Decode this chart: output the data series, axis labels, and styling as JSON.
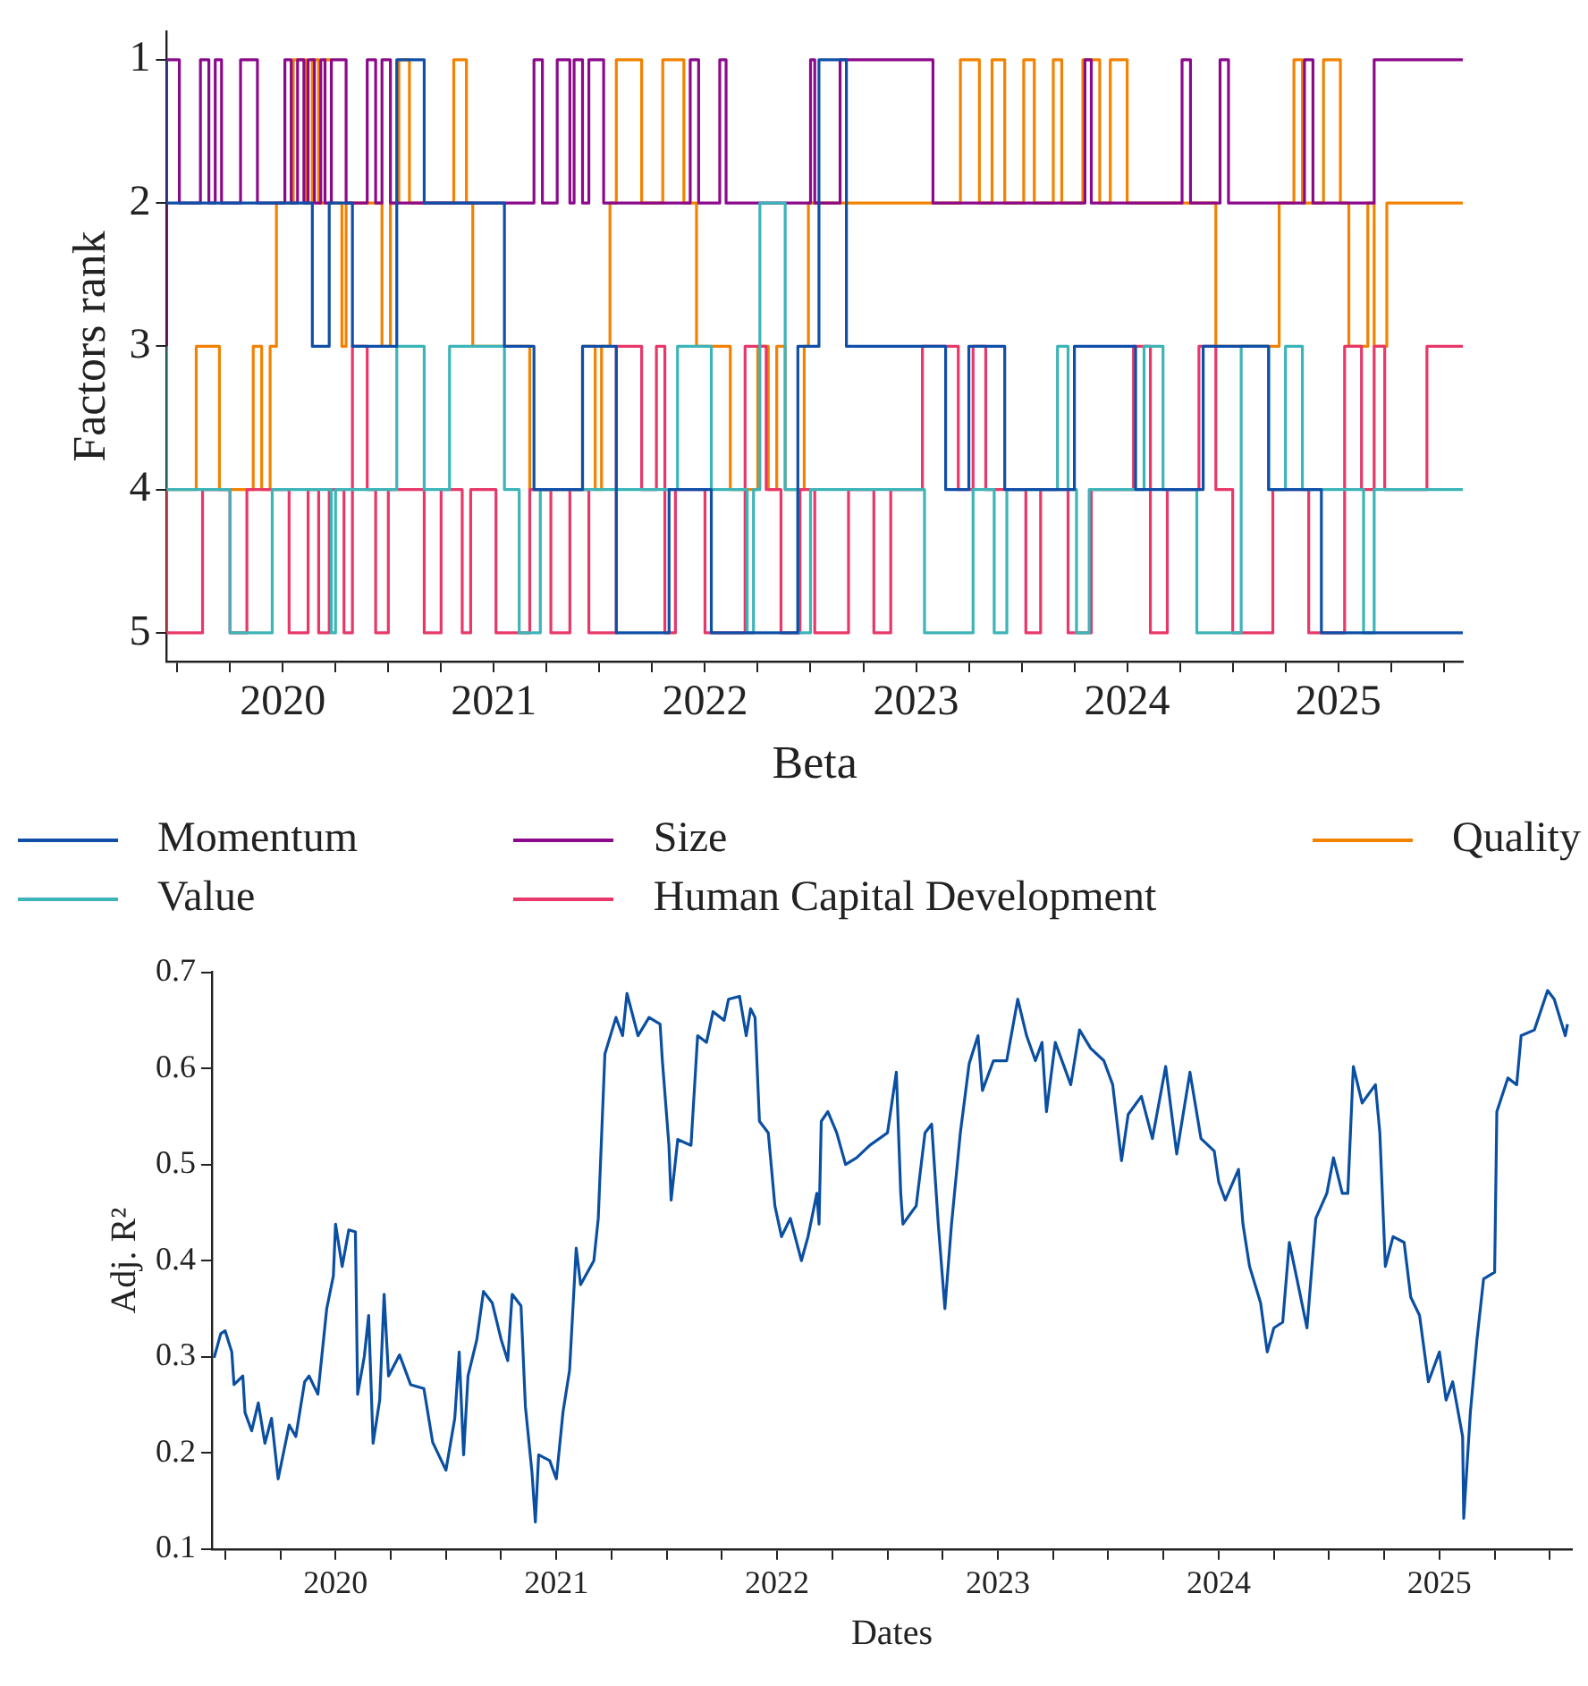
{
  "chart_data": [
    {
      "type": "step",
      "ylabel": "Factors rank",
      "xlabel": "Beta",
      "legend": "bottom",
      "xlim": [
        2019.45,
        2025.59
      ],
      "ylim": [
        5.2,
        0.8
      ],
      "yticks": [
        1,
        2,
        3,
        4,
        5
      ],
      "xticks": [
        {
          "value": 2019.5,
          "label": null
        },
        {
          "value": 2019.75,
          "label": null
        },
        2020,
        {
          "value": 2020.25,
          "label": null
        },
        {
          "value": 2020.5,
          "label": null
        },
        {
          "value": 2020.75,
          "label": null
        },
        2021,
        {
          "value": 2021.25,
          "label": null
        },
        {
          "value": 2021.5,
          "label": null
        },
        {
          "value": 2021.75,
          "label": null
        },
        2022,
        {
          "value": 2022.25,
          "label": null
        },
        {
          "value": 2022.5,
          "label": null
        },
        {
          "value": 2022.75,
          "label": null
        },
        2023,
        {
          "value": 2023.25,
          "label": null
        },
        {
          "value": 2023.5,
          "label": null
        },
        {
          "value": 2023.75,
          "label": null
        },
        2024,
        {
          "value": 2024.25,
          "label": null
        },
        {
          "value": 2024.5,
          "label": null
        },
        {
          "value": 2024.75,
          "label": null
        },
        2025,
        {
          "value": 2025.25,
          "label": null
        },
        {
          "value": 2025.5,
          "label": null
        }
      ],
      "series": [
        {
          "name": "Momentum",
          "color": "#0f4fa8",
          "x": [
            2019.45,
            2020.14,
            2020.22,
            2020.33,
            2020.54,
            2020.67,
            2021.05,
            2021.19,
            2021.42,
            2021.58,
            2021.83,
            2022.03,
            2022.44,
            2022.54,
            2022.67,
            2023.14,
            2023.25,
            2023.42,
            2023.75,
            2024.04,
            2024.36,
            2024.67,
            2024.92,
            2025.2,
            2025.59
          ],
          "values": [
            1,
            2,
            3,
            2,
            3,
            1,
            2,
            3,
            4,
            3,
            5,
            4,
            5,
            3,
            1,
            3,
            4,
            3,
            4,
            3,
            4,
            3,
            4,
            5,
            5
          ]
        },
        {
          "name": "Value",
          "color": "#3cb4b8",
          "x": [
            2019.45,
            2019.75,
            2019.95,
            2020.23,
            2020.25,
            2020.54,
            2020.67,
            2020.79,
            2021.05,
            2021.12,
            2021.22,
            2021.87,
            2022.03,
            2022.2,
            2022.23,
            2022.26,
            2022.38,
            2022.44,
            2022.5,
            2023.04,
            2023.27,
            2023.37,
            2023.43,
            2023.67,
            2023.72,
            2023.76,
            2023.82,
            2024.08,
            2024.17,
            2024.33,
            2024.54,
            2024.67,
            2024.75,
            2024.83,
            2025.12,
            2025.17,
            2025.33,
            2025.59
          ],
          "values": [
            3,
            4,
            5,
            4,
            5,
            4,
            3,
            4,
            3,
            4,
            5,
            4,
            3,
            4,
            5,
            4,
            2,
            4,
            5,
            4,
            5,
            4,
            5,
            4,
            3,
            4,
            5,
            4,
            3,
            4,
            5,
            3,
            4,
            3,
            4,
            5,
            4,
            4
          ]
        },
        {
          "name": "Size",
          "color": "#8b0a8c",
          "x": [
            2019.45,
            2019.51,
            2019.61,
            2019.65,
            2019.68,
            2019.71,
            2019.8,
            2019.88,
            2020.01,
            2020.04,
            2020.07,
            2020.1,
            2020.12,
            2020.15,
            2020.18,
            2020.2,
            2020.23,
            2020.3,
            2020.4,
            2020.44,
            2020.47,
            2020.51,
            2021.19,
            2021.23,
            2021.3,
            2021.36,
            2021.38,
            2021.42,
            2021.45,
            2021.52,
            2021.93,
            2021.97,
            2022.07,
            2022.1,
            2022.5,
            2022.52,
            2022.64,
            2023.08,
            2023.8,
            2023.83,
            2024.26,
            2024.3,
            2024.44,
            2024.48,
            2024.84,
            2024.88,
            2025.17,
            2025.22,
            2025.59
          ],
          "values": [
            3,
            1,
            2,
            1,
            2,
            1,
            2,
            1,
            2,
            1,
            2,
            1,
            2,
            1,
            2,
            1,
            2,
            1,
            2,
            1,
            2,
            1,
            2,
            1,
            2,
            1,
            2,
            1,
            2,
            1,
            2,
            1,
            2,
            1,
            2,
            1,
            2,
            1,
            2,
            1,
            2,
            1,
            2,
            1,
            2,
            1,
            2,
            1,
            1
          ]
        },
        {
          "name": "Human Capital Development",
          "color": "#e8386a",
          "x": [
            2019.45,
            2019.62,
            2019.75,
            2019.83,
            2020.03,
            2020.12,
            2020.17,
            2020.22,
            2020.29,
            2020.33,
            2020.4,
            2020.44,
            2020.5,
            2020.67,
            2020.75,
            2020.85,
            2020.89,
            2021.01,
            2021.17,
            2021.27,
            2021.36,
            2021.45,
            2021.58,
            2021.7,
            2021.77,
            2021.81,
            2021.86,
            2022.0,
            2022.19,
            2022.29,
            2022.36,
            2022.45,
            2022.52,
            2022.68,
            2022.8,
            2022.88,
            2023.03,
            2023.2,
            2023.27,
            2023.33,
            2023.52,
            2023.59,
            2023.72,
            2023.83,
            2024.03,
            2024.11,
            2024.19,
            2024.34,
            2024.42,
            2024.5,
            2024.69,
            2024.86,
            2025.03,
            2025.11,
            2025.17,
            2025.22,
            2025.42,
            2025.47,
            2025.59
          ],
          "values": [
            4,
            5,
            4,
            5,
            4,
            5,
            4,
            5,
            4,
            5,
            3,
            4,
            5,
            4,
            5,
            4,
            5,
            4,
            5,
            4,
            5,
            4,
            5,
            3,
            4,
            3,
            5,
            4,
            5,
            3,
            4,
            5,
            4,
            5,
            4,
            5,
            4,
            3,
            4,
            3,
            4,
            5,
            4,
            5,
            4,
            3,
            5,
            4,
            3,
            4,
            5,
            4,
            5,
            3,
            4,
            3,
            4,
            3,
            3
          ]
        },
        {
          "name": "Quality",
          "color": "#f28200",
          "x": [
            2019.45,
            2019.59,
            2019.7,
            2019.86,
            2019.9,
            2019.94,
            2019.97,
            2020.05,
            2020.11,
            2020.14,
            2020.17,
            2020.2,
            2020.23,
            2020.28,
            2020.3,
            2020.47,
            2020.51,
            2020.55,
            2020.6,
            2020.81,
            2020.87,
            2020.9,
            2021.17,
            2021.42,
            2021.48,
            2021.51,
            2021.55,
            2021.58,
            2021.7,
            2021.8,
            2021.9,
            2021.96,
            2022.12,
            2022.25,
            2022.3,
            2022.34,
            2022.38,
            2022.47,
            2022.49,
            2023.21,
            2023.3,
            2023.36,
            2023.42,
            2023.51,
            2023.56,
            2023.65,
            2023.69,
            2023.79,
            2023.87,
            2023.92,
            2024.0,
            2024.42,
            2024.72,
            2024.79,
            2024.83,
            2024.93,
            2025.01,
            2025.05,
            2025.14,
            2025.17,
            2025.23,
            2025.26,
            2025.59
          ],
          "values": [
            5,
            4,
            3,
            4,
            3,
            4,
            3,
            2,
            1,
            2,
            1,
            2,
            1,
            2,
            3,
            2,
            3,
            2,
            1,
            2,
            1,
            2,
            3,
            4,
            3,
            4,
            3,
            2,
            1,
            2,
            1,
            2,
            3,
            4,
            3,
            4,
            3,
            4,
            3,
            2,
            1,
            2,
            1,
            2,
            1,
            2,
            1,
            2,
            1,
            2,
            1,
            2,
            3,
            2,
            1,
            2,
            1,
            2,
            3,
            2,
            3,
            2,
            2
          ]
        }
      ]
    },
    {
      "type": "line",
      "ylabel": "Adj. R²",
      "xlabel": "Dates",
      "xlim": [
        2019.44,
        2025.6
      ],
      "ylim": [
        0.1,
        0.7
      ],
      "yticks": [
        0.1,
        0.2,
        0.3,
        0.4,
        0.5,
        0.6,
        0.7
      ],
      "xticks": [
        {
          "value": 2019.5,
          "label": null
        },
        {
          "value": 2019.75,
          "label": null
        },
        2020,
        {
          "value": 2020.25,
          "label": null
        },
        {
          "value": 2020.5,
          "label": null
        },
        {
          "value": 2020.75,
          "label": null
        },
        2021,
        {
          "value": 2021.25,
          "label": null
        },
        {
          "value": 2021.5,
          "label": null
        },
        {
          "value": 2021.75,
          "label": null
        },
        2022,
        {
          "value": 2022.25,
          "label": null
        },
        {
          "value": 2022.5,
          "label": null
        },
        {
          "value": 2022.75,
          "label": null
        },
        2023,
        {
          "value": 2023.25,
          "label": null
        },
        {
          "value": 2023.5,
          "label": null
        },
        {
          "value": 2023.75,
          "label": null
        },
        2024,
        {
          "value": 2024.25,
          "label": null
        },
        {
          "value": 2024.5,
          "label": null
        },
        {
          "value": 2024.75,
          "label": null
        },
        2025,
        {
          "value": 2025.25,
          "label": null
        },
        {
          "value": 2025.5,
          "label": null
        }
      ],
      "series": [
        {
          "color": "#0b4fa2",
          "x": [
            2019.45,
            2019.48,
            2019.5,
            2019.53,
            2019.54,
            2019.58,
            2019.59,
            2019.62,
            2019.65,
            2019.68,
            2019.71,
            2019.74,
            2019.79,
            2019.82,
            2019.86,
            2019.88,
            2019.92,
            2019.96,
            2019.99,
            2020.0,
            2020.03,
            2020.06,
            2020.09,
            2020.1,
            2020.13,
            2020.15,
            2020.17,
            2020.2,
            2020.22,
            2020.24,
            2020.29,
            2020.34,
            2020.4,
            2020.44,
            2020.5,
            2020.54,
            2020.56,
            2020.58,
            2020.6,
            2020.64,
            2020.67,
            2020.71,
            2020.75,
            2020.78,
            2020.8,
            2020.84,
            2020.86,
            2020.89,
            2020.905,
            2020.92,
            2020.97,
            2021.0,
            2021.03,
            2021.06,
            2021.09,
            2021.11,
            2021.17,
            2021.19,
            2021.22,
            2021.27,
            2021.3,
            2021.32,
            2021.37,
            2021.42,
            2021.47,
            2021.48,
            2021.51,
            2021.52,
            2021.55,
            2021.61,
            2021.64,
            2021.68,
            2021.71,
            2021.76,
            2021.78,
            2021.83,
            2021.86,
            2021.88,
            2021.9,
            2021.92,
            2021.96,
            2021.99,
            2022.02,
            2022.06,
            2022.11,
            2022.14,
            2022.18,
            2022.19,
            2022.2,
            2022.23,
            2022.27,
            2022.31,
            2022.36,
            2022.42,
            2022.5,
            2022.54,
            2022.56,
            2022.57,
            2022.63,
            2022.67,
            2022.7,
            2022.73,
            2022.76,
            2022.79,
            2022.83,
            2022.87,
            2022.91,
            2022.93,
            2022.98,
            2023.04,
            2023.09,
            2023.13,
            2023.17,
            2023.2,
            2023.22,
            2023.26,
            2023.33,
            2023.37,
            2023.42,
            2023.48,
            2023.52,
            2023.56,
            2023.59,
            2023.65,
            2023.7,
            2023.76,
            2023.81,
            2023.87,
            2023.92,
            2023.98,
            2024.0,
            2024.03,
            2024.09,
            2024.11,
            2024.14,
            2024.19,
            2024.22,
            2024.25,
            2024.29,
            2024.32,
            2024.36,
            2024.4,
            2024.44,
            2024.49,
            2024.52,
            2024.56,
            2024.585,
            2024.61,
            2024.65,
            2024.71,
            2024.73,
            2024.755,
            2024.79,
            2024.84,
            2024.87,
            2024.91,
            2024.95,
            2025.0,
            2025.03,
            2025.06,
            2025.105,
            2025.11,
            2025.14,
            2025.17,
            2025.2,
            2025.25,
            2025.26,
            2025.31,
            2025.35,
            2025.37,
            2025.43,
            2025.49,
            2025.52,
            2025.57,
            2025.58
          ],
          "values": [
            0.299,
            0.324,
            0.327,
            0.305,
            0.271,
            0.28,
            0.242,
            0.223,
            0.252,
            0.21,
            0.236,
            0.173,
            0.229,
            0.217,
            0.274,
            0.28,
            0.261,
            0.35,
            0.384,
            0.438,
            0.394,
            0.432,
            0.43,
            0.261,
            0.3,
            0.343,
            0.21,
            0.255,
            0.365,
            0.28,
            0.302,
            0.271,
            0.267,
            0.211,
            0.182,
            0.236,
            0.305,
            0.198,
            0.28,
            0.318,
            0.368,
            0.356,
            0.318,
            0.296,
            0.365,
            0.353,
            0.248,
            0.179,
            0.128,
            0.198,
            0.192,
            0.173,
            0.242,
            0.286,
            0.413,
            0.375,
            0.4,
            0.444,
            0.615,
            0.653,
            0.634,
            0.678,
            0.634,
            0.653,
            0.646,
            0.609,
            0.52,
            0.463,
            0.526,
            0.52,
            0.634,
            0.627,
            0.659,
            0.65,
            0.672,
            0.675,
            0.634,
            0.662,
            0.653,
            0.545,
            0.533,
            0.457,
            0.425,
            0.444,
            0.4,
            0.425,
            0.47,
            0.438,
            0.545,
            0.555,
            0.533,
            0.5,
            0.507,
            0.52,
            0.533,
            0.596,
            0.47,
            0.438,
            0.457,
            0.533,
            0.542,
            0.438,
            0.35,
            0.438,
            0.533,
            0.605,
            0.634,
            0.577,
            0.608,
            0.608,
            0.672,
            0.634,
            0.608,
            0.627,
            0.555,
            0.627,
            0.583,
            0.64,
            0.621,
            0.608,
            0.583,
            0.504,
            0.552,
            0.571,
            0.527,
            0.602,
            0.511,
            0.596,
            0.527,
            0.514,
            0.482,
            0.463,
            0.495,
            0.438,
            0.394,
            0.356,
            0.305,
            0.33,
            0.336,
            0.419,
            0.375,
            0.33,
            0.444,
            0.47,
            0.507,
            0.47,
            0.47,
            0.602,
            0.564,
            0.583,
            0.533,
            0.394,
            0.425,
            0.419,
            0.362,
            0.343,
            0.274,
            0.305,
            0.255,
            0.274,
            0.217,
            0.132,
            0.242,
            0.318,
            0.381,
            0.388,
            0.555,
            0.59,
            0.583,
            0.634,
            0.64,
            0.681,
            0.672,
            0.634,
            0.646
          ]
        }
      ]
    }
  ]
}
